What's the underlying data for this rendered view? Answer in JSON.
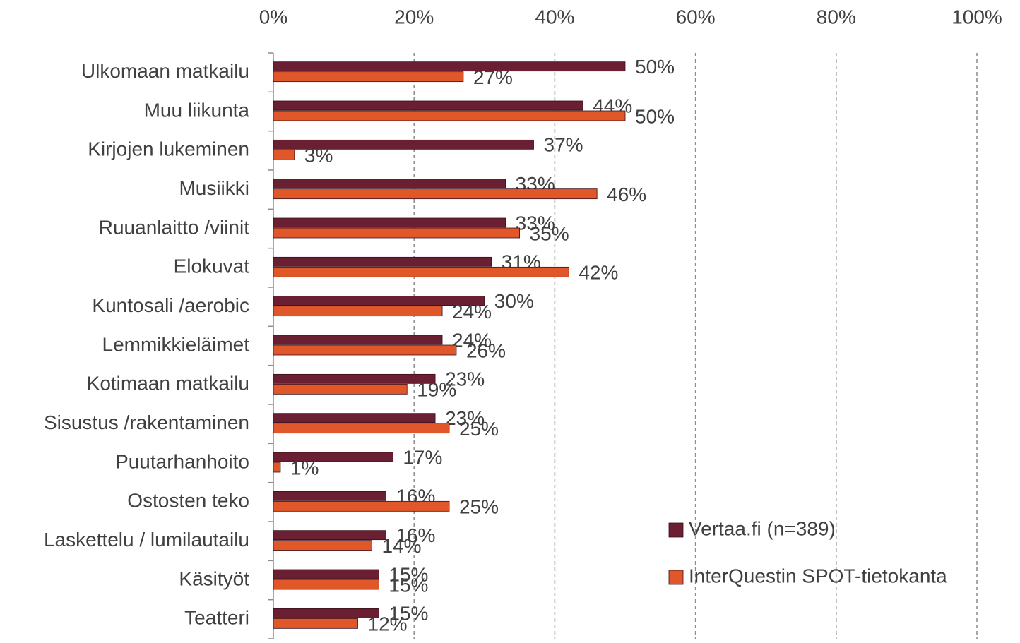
{
  "chart_data": {
    "type": "bar",
    "orientation": "horizontal",
    "categories": [
      "Ulkomaan matkailu",
      "Muu liikunta",
      "Kirjojen lukeminen",
      "Musiikki",
      "Ruuanlaitto /viinit",
      "Elokuvat",
      "Kuntosali /aerobic",
      "Lemmikkieläimet",
      "Kotimaan matkailu",
      "Sisustus /rakentaminen",
      "Puutarhanhoito",
      "Ostosten teko",
      "Laskettelu / lumilautailu",
      "Käsityöt",
      "Teatteri"
    ],
    "series": [
      {
        "name": "Vertaa.fi (n=389)",
        "color": "#6b1f33",
        "values": [
          50,
          44,
          37,
          33,
          33,
          31,
          30,
          24,
          23,
          23,
          17,
          16,
          16,
          15,
          15
        ],
        "value_labels": [
          "50%",
          "44%",
          "37%",
          "33%",
          "33%",
          "31%",
          "30%",
          "24%",
          "23%",
          "23%",
          "17%",
          "16%",
          "16%",
          "15%",
          "15%"
        ]
      },
      {
        "name": "InterQuestin SPOT-tietokanta",
        "color": "#e0582a",
        "values": [
          27,
          50,
          3,
          46,
          35,
          42,
          24,
          26,
          19,
          25,
          1,
          25,
          14,
          15,
          12
        ],
        "value_labels": [
          "27%",
          "50%",
          "3%",
          "46%",
          "35%",
          "42%",
          "24%",
          "26%",
          "19%",
          "25%",
          "1%",
          "25%",
          "14%",
          "15%",
          "12%"
        ]
      }
    ],
    "xlim": [
      0,
      100
    ],
    "xticks": [
      {
        "value": 0,
        "label": "0%"
      },
      {
        "value": 20,
        "label": "20%"
      },
      {
        "value": 40,
        "label": "40%"
      },
      {
        "value": 60,
        "label": "60%"
      },
      {
        "value": 80,
        "label": "80%"
      },
      {
        "value": 100,
        "label": "100%"
      }
    ],
    "grid": true,
    "legend": "right"
  }
}
